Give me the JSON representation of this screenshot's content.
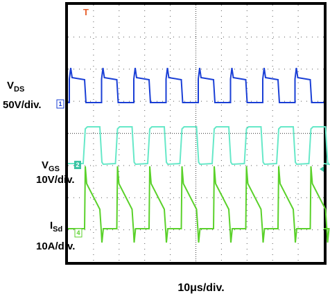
{
  "trigger": "T",
  "channels": [
    {
      "name": "V",
      "sub": "DS",
      "scale": "50V/div.",
      "marker": "1"
    },
    {
      "name": "V",
      "sub": "GS",
      "scale": "10V/div.",
      "marker": "2"
    },
    {
      "name": "I",
      "sub": "Sd",
      "scale": "10A/div.",
      "marker": "4"
    }
  ],
  "timebase": "10μs/div."
}
